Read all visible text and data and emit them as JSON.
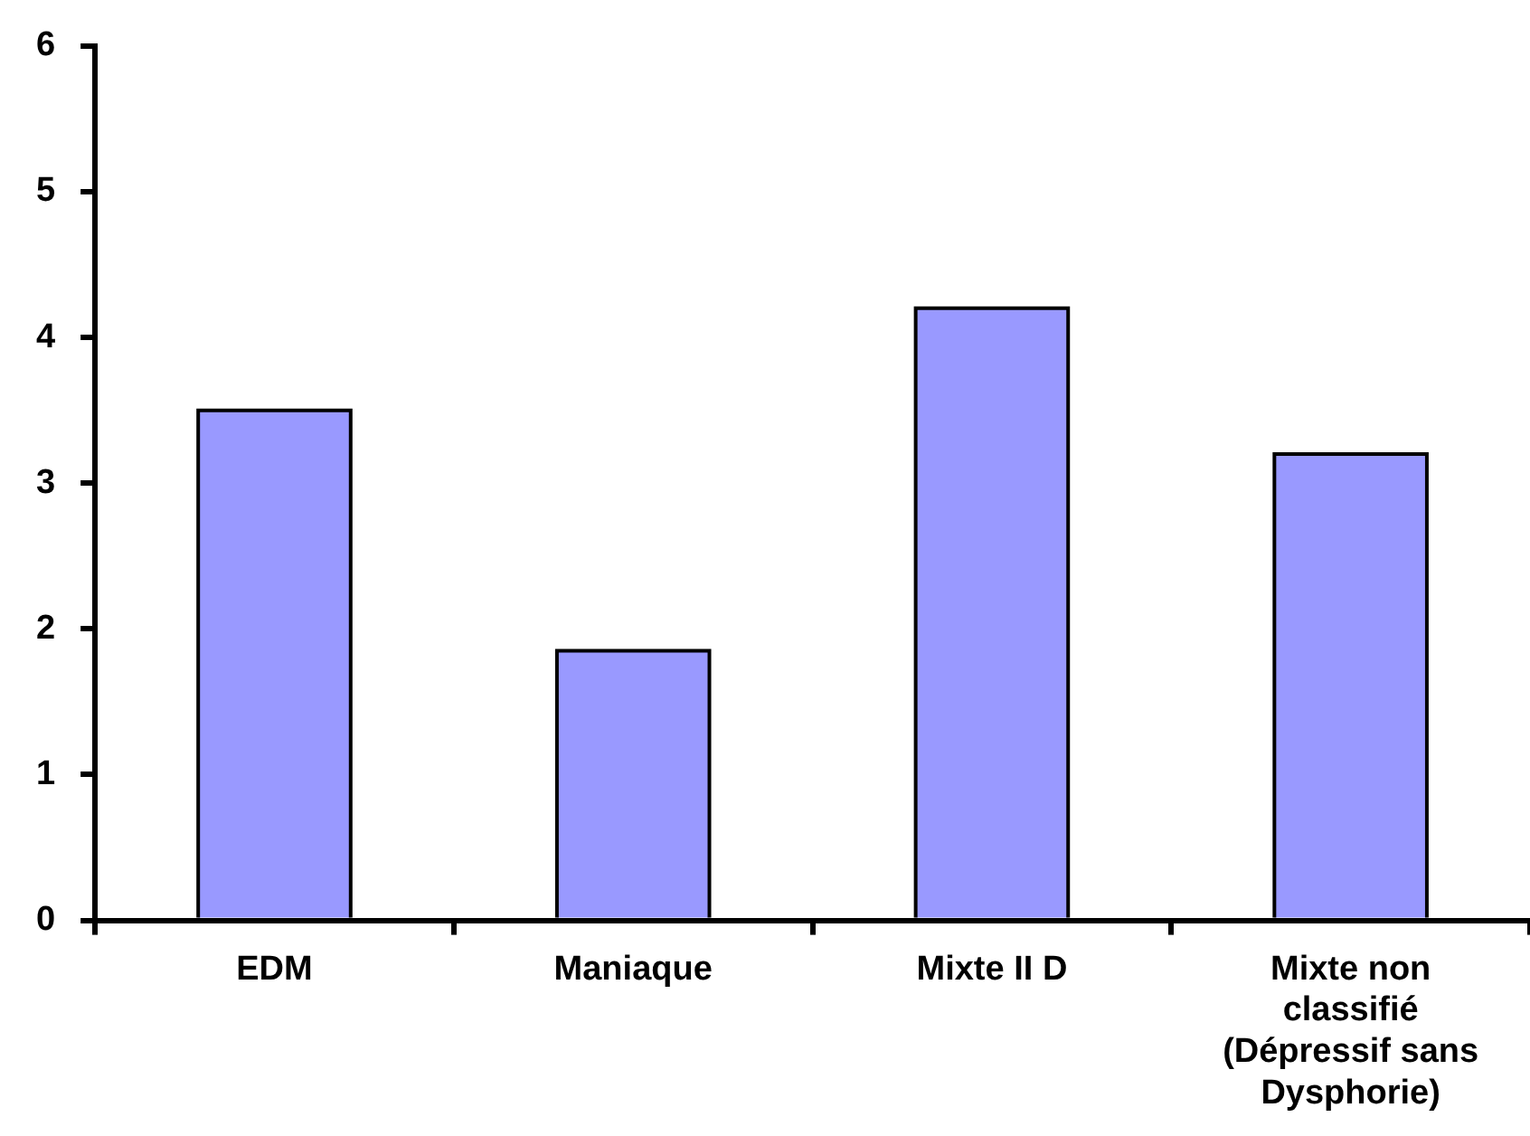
{
  "chart_data": {
    "type": "bar",
    "categories": [
      "EDM",
      "Maniaque",
      "Mixte II D",
      "Mixte non classifié (Dépressif sans Dysphorie)"
    ],
    "values": [
      3.5,
      1.85,
      4.2,
      3.2
    ],
    "color": "#9999ff",
    "ylim": [
      0,
      6
    ],
    "yticks": [
      0,
      1,
      2,
      3,
      4,
      5,
      6
    ],
    "grid": false,
    "legend": false
  }
}
